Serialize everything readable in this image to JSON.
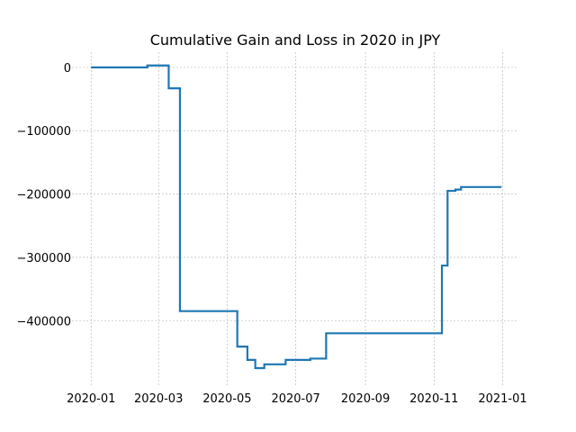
{
  "chart_data": {
    "type": "line",
    "title": "Cumulative Gain and Loss in 2020 in JPY",
    "xlabel": "",
    "ylabel": "",
    "grid": true,
    "line_color": "#1f77b4",
    "xlim": [
      "2019-12-15",
      "2021-01-15"
    ],
    "ylim": [
      -502000,
      24000
    ],
    "x_ticks": [
      "2020-01",
      "2020-03",
      "2020-05",
      "2020-07",
      "2020-09",
      "2020-11",
      "2021-01"
    ],
    "y_ticks": [
      0,
      -100000,
      -200000,
      -300000,
      -400000
    ],
    "y_tick_labels": [
      "0",
      "−100000",
      "−200000",
      "−300000",
      "−400000"
    ],
    "series": [
      {
        "step": true,
        "x": [
          "2020-01-01",
          "2020-02-20",
          "2020-03-10",
          "2020-03-20",
          "2020-03-24",
          "2020-05-10",
          "2020-05-13",
          "2020-05-19",
          "2020-05-26",
          "2020-06-03",
          "2020-06-22",
          "2020-07-14",
          "2020-07-28",
          "2020-11-08",
          "2020-11-13",
          "2020-11-20",
          "2020-11-25",
          "2020-12-31"
        ],
        "y": [
          0,
          3000,
          -33000,
          -385000,
          -385000,
          -441000,
          -441000,
          -462000,
          -475000,
          -469000,
          -462000,
          -460000,
          -420000,
          -313000,
          -195000,
          -193000,
          -189000,
          -189000
        ]
      }
    ]
  }
}
